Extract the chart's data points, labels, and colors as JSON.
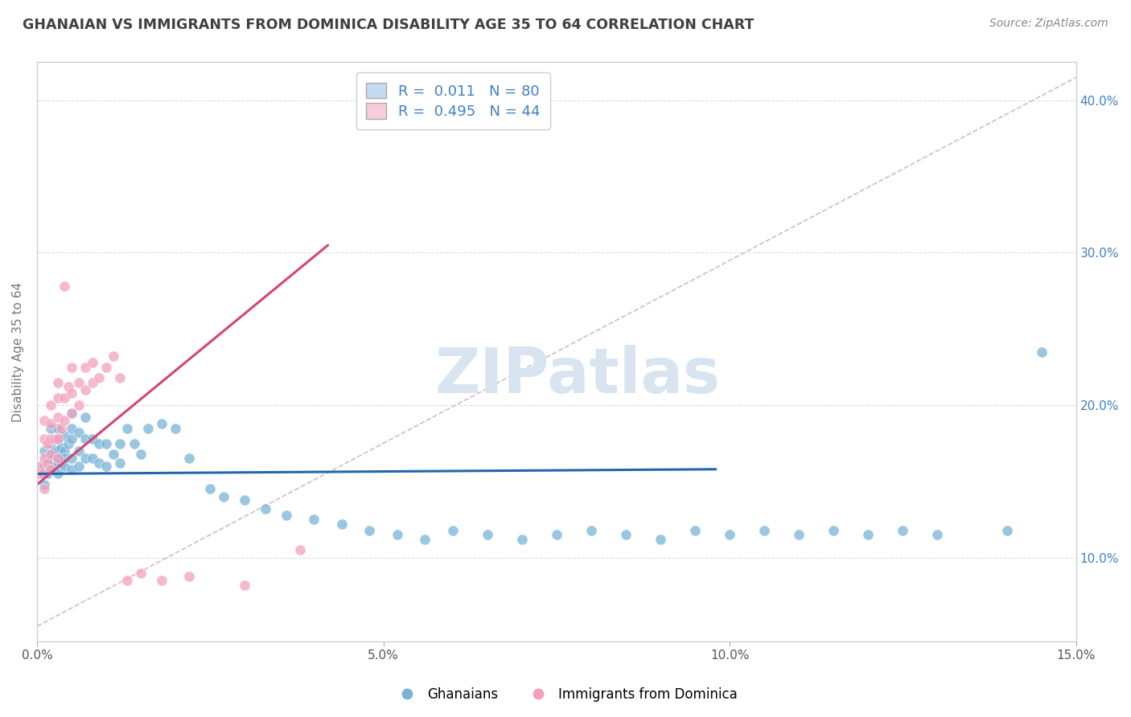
{
  "title": "GHANAIAN VS IMMIGRANTS FROM DOMINICA DISABILITY AGE 35 TO 64 CORRELATION CHART",
  "source_text": "Source: ZipAtlas.com",
  "ylabel": "Disability Age 35 to 64",
  "xlim": [
    0.0,
    0.15
  ],
  "ylim": [
    0.045,
    0.425
  ],
  "xticks": [
    0.0,
    0.05,
    0.1,
    0.15
  ],
  "xticklabels": [
    "0.0%",
    "5.0%",
    "10.0%",
    "15.0%"
  ],
  "yticks_left": [
    0.1,
    0.2,
    0.3,
    0.4
  ],
  "yticklabels_left": [
    "",
    "",
    "",
    ""
  ],
  "yticks_right": [
    0.1,
    0.2,
    0.3,
    0.4
  ],
  "yticklabels_right": [
    "10.0%",
    "20.0%",
    "30.0%",
    "40.0%"
  ],
  "blue_color": "#7ab3d8",
  "pink_color": "#f4a0bb",
  "blue_fill": "#c5d9f0",
  "pink_fill": "#f9ccd9",
  "trend_blue": "#2166ac",
  "trend_pink": "#d44478",
  "trend_gray_color": "#ccaaaa",
  "watermark": "ZIPatlas",
  "watermark_color": "#d8e4f0",
  "title_color": "#404040",
  "axis_label_color": "#4080c0",
  "ylabel_color": "#777777",
  "background": "#ffffff",
  "grid_color": "#dddddd",
  "blue_scatter_x": [
    0.0005,
    0.001,
    0.001,
    0.001,
    0.0015,
    0.0015,
    0.002,
    0.002,
    0.002,
    0.002,
    0.002,
    0.0025,
    0.0025,
    0.003,
    0.003,
    0.003,
    0.003,
    0.003,
    0.003,
    0.0035,
    0.0035,
    0.004,
    0.004,
    0.004,
    0.004,
    0.0045,
    0.005,
    0.005,
    0.005,
    0.005,
    0.005,
    0.006,
    0.006,
    0.006,
    0.007,
    0.007,
    0.007,
    0.008,
    0.008,
    0.009,
    0.009,
    0.01,
    0.01,
    0.011,
    0.012,
    0.012,
    0.013,
    0.014,
    0.015,
    0.016,
    0.018,
    0.02,
    0.022,
    0.025,
    0.027,
    0.03,
    0.033,
    0.036,
    0.04,
    0.044,
    0.048,
    0.052,
    0.056,
    0.06,
    0.065,
    0.07,
    0.075,
    0.08,
    0.085,
    0.09,
    0.095,
    0.1,
    0.105,
    0.11,
    0.115,
    0.12,
    0.125,
    0.13,
    0.14,
    0.145
  ],
  "blue_scatter_y": [
    0.155,
    0.148,
    0.16,
    0.17,
    0.155,
    0.165,
    0.158,
    0.168,
    0.175,
    0.185,
    0.165,
    0.16,
    0.17,
    0.155,
    0.162,
    0.17,
    0.178,
    0.185,
    0.165,
    0.162,
    0.172,
    0.16,
    0.17,
    0.18,
    0.165,
    0.175,
    0.158,
    0.165,
    0.178,
    0.185,
    0.195,
    0.16,
    0.17,
    0.182,
    0.165,
    0.178,
    0.192,
    0.165,
    0.178,
    0.162,
    0.175,
    0.16,
    0.175,
    0.168,
    0.162,
    0.175,
    0.185,
    0.175,
    0.168,
    0.185,
    0.188,
    0.185,
    0.165,
    0.145,
    0.14,
    0.138,
    0.132,
    0.128,
    0.125,
    0.122,
    0.118,
    0.115,
    0.112,
    0.118,
    0.115,
    0.112,
    0.115,
    0.118,
    0.115,
    0.112,
    0.118,
    0.115,
    0.118,
    0.115,
    0.118,
    0.115,
    0.118,
    0.115,
    0.118,
    0.235
  ],
  "pink_scatter_x": [
    0.0003,
    0.0005,
    0.0008,
    0.001,
    0.001,
    0.001,
    0.001,
    0.0015,
    0.0015,
    0.002,
    0.002,
    0.002,
    0.002,
    0.002,
    0.0025,
    0.003,
    0.003,
    0.003,
    0.003,
    0.003,
    0.0035,
    0.004,
    0.004,
    0.004,
    0.0045,
    0.005,
    0.005,
    0.005,
    0.006,
    0.006,
    0.007,
    0.007,
    0.008,
    0.008,
    0.009,
    0.01,
    0.011,
    0.012,
    0.013,
    0.015,
    0.018,
    0.022,
    0.03,
    0.038
  ],
  "pink_scatter_y": [
    0.155,
    0.16,
    0.155,
    0.145,
    0.165,
    0.178,
    0.19,
    0.162,
    0.175,
    0.158,
    0.168,
    0.178,
    0.188,
    0.2,
    0.178,
    0.165,
    0.178,
    0.192,
    0.205,
    0.215,
    0.185,
    0.19,
    0.205,
    0.278,
    0.212,
    0.195,
    0.208,
    0.225,
    0.2,
    0.215,
    0.21,
    0.225,
    0.215,
    0.228,
    0.218,
    0.225,
    0.232,
    0.218,
    0.085,
    0.09,
    0.085,
    0.088,
    0.082,
    0.105
  ],
  "blue_trend_x": [
    0.0,
    0.098
  ],
  "blue_trend_y": [
    0.155,
    0.158
  ],
  "pink_trend_x": [
    0.0,
    0.042
  ],
  "pink_trend_y": [
    0.148,
    0.305
  ],
  "gray_trend_x": [
    0.0,
    0.15
  ],
  "gray_trend_y": [
    0.055,
    0.415
  ]
}
